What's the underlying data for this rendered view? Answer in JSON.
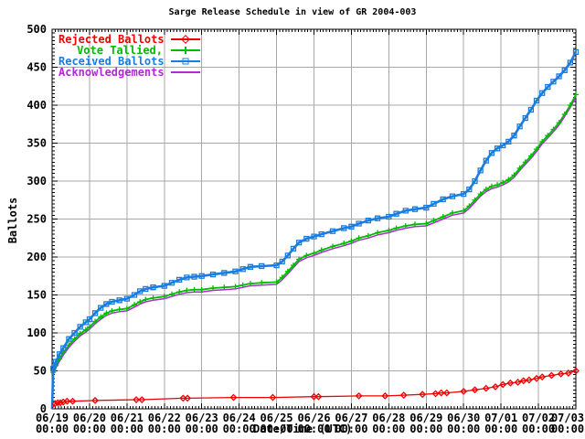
{
  "chart_data": {
    "type": "line",
    "title": "Sarge Release Schedule in view of GR 2004-003",
    "xlabel": "Date/Time (UTC)",
    "ylabel": "Ballots",
    "ylim": [
      0,
      500
    ],
    "y_tick_step": 50,
    "y_minor_step": 5,
    "x_range_days": [
      0,
      14
    ],
    "x_minor_per_day": 12,
    "grid": true,
    "grid_color": "#a8a8a8",
    "border_color": "#000000",
    "legend_position": "top-left-inside",
    "x_ticks": [
      {
        "date": "06/19",
        "time": "00:00"
      },
      {
        "date": "06/20",
        "time": "00:00"
      },
      {
        "date": "06/21",
        "time": "00:00"
      },
      {
        "date": "06/22",
        "time": "00:00"
      },
      {
        "date": "06/23",
        "time": "00:00"
      },
      {
        "date": "06/24",
        "time": "00:00"
      },
      {
        "date": "06/25",
        "time": "00:00"
      },
      {
        "date": "06/26",
        "time": "00:00"
      },
      {
        "date": "06/27",
        "time": "00:00"
      },
      {
        "date": "06/28",
        "time": "00:00"
      },
      {
        "date": "06/29",
        "time": "00:00"
      },
      {
        "date": "06/30",
        "time": "00:00"
      },
      {
        "date": "07/01",
        "time": "00:00"
      },
      {
        "date": "07/02",
        "time": "00:00"
      },
      {
        "date": "07/03",
        "time": "00:00"
      }
    ],
    "series": [
      {
        "name": "Rejected Ballots",
        "color": "#f00000",
        "marker": "diamond",
        "points": [
          [
            0,
            0
          ],
          [
            0.08,
            7
          ],
          [
            0.15,
            8
          ],
          [
            0.22,
            8
          ],
          [
            0.3,
            9
          ],
          [
            0.4,
            10
          ],
          [
            0.55,
            10
          ],
          [
            1.15,
            11
          ],
          [
            2.25,
            12
          ],
          [
            2.4,
            12
          ],
          [
            3.5,
            14
          ],
          [
            3.62,
            14
          ],
          [
            4.85,
            15
          ],
          [
            5.9,
            15
          ],
          [
            7.0,
            16
          ],
          [
            7.12,
            16
          ],
          [
            8.2,
            17
          ],
          [
            8.9,
            17
          ],
          [
            9.4,
            18
          ],
          [
            9.9,
            19
          ],
          [
            10.25,
            20
          ],
          [
            10.4,
            21
          ],
          [
            10.55,
            21
          ],
          [
            11.0,
            23
          ],
          [
            11.3,
            25
          ],
          [
            11.6,
            27
          ],
          [
            11.85,
            29
          ],
          [
            12.05,
            32
          ],
          [
            12.25,
            34
          ],
          [
            12.45,
            35
          ],
          [
            12.6,
            37
          ],
          [
            12.75,
            38
          ],
          [
            12.95,
            40
          ],
          [
            13.1,
            42
          ],
          [
            13.35,
            44
          ],
          [
            13.6,
            46
          ],
          [
            13.8,
            47
          ],
          [
            14.0,
            50
          ]
        ]
      },
      {
        "name": "Vote Tallied,",
        "color": "#00bc00",
        "marker": "plus",
        "points": [
          [
            0,
            0
          ],
          [
            0.03,
            48
          ],
          [
            0.1,
            57
          ],
          [
            0.2,
            66
          ],
          [
            0.3,
            74
          ],
          [
            0.45,
            84
          ],
          [
            0.6,
            92
          ],
          [
            0.75,
            99
          ],
          [
            0.9,
            104
          ],
          [
            1.0,
            108
          ],
          [
            1.15,
            115
          ],
          [
            1.3,
            121
          ],
          [
            1.45,
            126
          ],
          [
            1.6,
            129
          ],
          [
            1.8,
            131
          ],
          [
            2.0,
            132
          ],
          [
            2.2,
            137
          ],
          [
            2.35,
            141
          ],
          [
            2.5,
            144
          ],
          [
            2.7,
            146
          ],
          [
            3.0,
            148
          ],
          [
            3.2,
            151
          ],
          [
            3.4,
            154
          ],
          [
            3.6,
            156
          ],
          [
            3.8,
            157
          ],
          [
            4.0,
            157
          ],
          [
            4.3,
            159
          ],
          [
            4.6,
            160
          ],
          [
            4.9,
            161
          ],
          [
            5.1,
            163
          ],
          [
            5.3,
            165
          ],
          [
            5.6,
            166
          ],
          [
            6.0,
            167
          ],
          [
            6.15,
            173
          ],
          [
            6.3,
            181
          ],
          [
            6.45,
            189
          ],
          [
            6.6,
            197
          ],
          [
            6.8,
            202
          ],
          [
            7.0,
            205
          ],
          [
            7.2,
            209
          ],
          [
            7.5,
            214
          ],
          [
            7.8,
            218
          ],
          [
            8.0,
            221
          ],
          [
            8.2,
            225
          ],
          [
            8.45,
            228
          ],
          [
            8.7,
            232
          ],
          [
            9.0,
            235
          ],
          [
            9.2,
            238
          ],
          [
            9.45,
            241
          ],
          [
            9.7,
            243
          ],
          [
            10.0,
            244
          ],
          [
            10.2,
            248
          ],
          [
            10.45,
            253
          ],
          [
            10.7,
            258
          ],
          [
            11.0,
            261
          ],
          [
            11.15,
            267
          ],
          [
            11.3,
            275
          ],
          [
            11.45,
            283
          ],
          [
            11.6,
            289
          ],
          [
            11.75,
            293
          ],
          [
            11.9,
            295
          ],
          [
            12.05,
            298
          ],
          [
            12.2,
            302
          ],
          [
            12.35,
            308
          ],
          [
            12.5,
            317
          ],
          [
            12.65,
            325
          ],
          [
            12.8,
            333
          ],
          [
            12.95,
            342
          ],
          [
            13.1,
            352
          ],
          [
            13.25,
            360
          ],
          [
            13.4,
            368
          ],
          [
            13.55,
            377
          ],
          [
            13.7,
            388
          ],
          [
            13.85,
            400
          ],
          [
            14.0,
            414
          ]
        ]
      },
      {
        "name": "Received Ballots",
        "color": "#1b7ce0",
        "marker": "square",
        "points": [
          [
            0,
            0
          ],
          [
            0.03,
            53
          ],
          [
            0.1,
            62
          ],
          [
            0.2,
            72
          ],
          [
            0.3,
            80
          ],
          [
            0.45,
            92
          ],
          [
            0.6,
            100
          ],
          [
            0.75,
            108
          ],
          [
            0.9,
            114
          ],
          [
            1.0,
            118
          ],
          [
            1.15,
            126
          ],
          [
            1.3,
            133
          ],
          [
            1.45,
            138
          ],
          [
            1.6,
            141
          ],
          [
            1.8,
            143
          ],
          [
            2.0,
            145
          ],
          [
            2.2,
            150
          ],
          [
            2.35,
            155
          ],
          [
            2.5,
            158
          ],
          [
            2.7,
            160
          ],
          [
            3.0,
            162
          ],
          [
            3.2,
            166
          ],
          [
            3.4,
            170
          ],
          [
            3.6,
            173
          ],
          [
            3.8,
            174
          ],
          [
            4.0,
            175
          ],
          [
            4.3,
            177
          ],
          [
            4.6,
            179
          ],
          [
            4.9,
            181
          ],
          [
            5.1,
            184
          ],
          [
            5.3,
            187
          ],
          [
            5.6,
            188
          ],
          [
            6.0,
            189
          ],
          [
            6.15,
            194
          ],
          [
            6.3,
            202
          ],
          [
            6.45,
            211
          ],
          [
            6.6,
            219
          ],
          [
            6.8,
            224
          ],
          [
            7.0,
            227
          ],
          [
            7.2,
            230
          ],
          [
            7.5,
            234
          ],
          [
            7.8,
            238
          ],
          [
            8.0,
            240
          ],
          [
            8.2,
            244
          ],
          [
            8.45,
            248
          ],
          [
            8.7,
            251
          ],
          [
            9.0,
            253
          ],
          [
            9.2,
            257
          ],
          [
            9.45,
            261
          ],
          [
            9.7,
            263
          ],
          [
            10.0,
            265
          ],
          [
            10.2,
            270
          ],
          [
            10.45,
            276
          ],
          [
            10.7,
            280
          ],
          [
            11.0,
            283
          ],
          [
            11.15,
            289
          ],
          [
            11.3,
            300
          ],
          [
            11.45,
            314
          ],
          [
            11.6,
            327
          ],
          [
            11.75,
            337
          ],
          [
            11.9,
            343
          ],
          [
            12.05,
            347
          ],
          [
            12.2,
            352
          ],
          [
            12.35,
            360
          ],
          [
            12.5,
            372
          ],
          [
            12.65,
            383
          ],
          [
            12.8,
            394
          ],
          [
            12.95,
            406
          ],
          [
            13.1,
            416
          ],
          [
            13.25,
            424
          ],
          [
            13.4,
            431
          ],
          [
            13.55,
            438
          ],
          [
            13.7,
            446
          ],
          [
            13.85,
            456
          ],
          [
            14.0,
            470
          ]
        ]
      },
      {
        "name": "Acknowledgements",
        "color": "#b028d8",
        "marker": "none",
        "points": [
          [
            0,
            0
          ],
          [
            0.03,
            45
          ],
          [
            0.1,
            54
          ],
          [
            0.2,
            63
          ],
          [
            0.3,
            71
          ],
          [
            0.45,
            81
          ],
          [
            0.6,
            89
          ],
          [
            0.75,
            96
          ],
          [
            0.9,
            101
          ],
          [
            1.0,
            105
          ],
          [
            1.15,
            112
          ],
          [
            1.3,
            118
          ],
          [
            1.45,
            123
          ],
          [
            1.6,
            126
          ],
          [
            1.8,
            128
          ],
          [
            2.0,
            129
          ],
          [
            2.2,
            134
          ],
          [
            2.35,
            138
          ],
          [
            2.5,
            141
          ],
          [
            2.7,
            143
          ],
          [
            3.0,
            145
          ],
          [
            3.2,
            148
          ],
          [
            3.4,
            151
          ],
          [
            3.6,
            153
          ],
          [
            3.8,
            154
          ],
          [
            4.0,
            154
          ],
          [
            4.3,
            156
          ],
          [
            4.6,
            157
          ],
          [
            4.9,
            158
          ],
          [
            5.1,
            160
          ],
          [
            5.3,
            162
          ],
          [
            5.6,
            163
          ],
          [
            6.0,
            164
          ],
          [
            6.15,
            170
          ],
          [
            6.3,
            178
          ],
          [
            6.45,
            186
          ],
          [
            6.6,
            194
          ],
          [
            6.8,
            199
          ],
          [
            7.0,
            202
          ],
          [
            7.2,
            206
          ],
          [
            7.5,
            211
          ],
          [
            7.8,
            215
          ],
          [
            8.0,
            218
          ],
          [
            8.2,
            222
          ],
          [
            8.45,
            225
          ],
          [
            8.7,
            229
          ],
          [
            9.0,
            232
          ],
          [
            9.2,
            235
          ],
          [
            9.45,
            238
          ],
          [
            9.7,
            240
          ],
          [
            10.0,
            241
          ],
          [
            10.2,
            245
          ],
          [
            10.45,
            250
          ],
          [
            10.7,
            255
          ],
          [
            11.0,
            258
          ],
          [
            11.15,
            264
          ],
          [
            11.3,
            272
          ],
          [
            11.45,
            280
          ],
          [
            11.6,
            286
          ],
          [
            11.75,
            290
          ],
          [
            11.9,
            292
          ],
          [
            12.05,
            295
          ],
          [
            12.2,
            299
          ],
          [
            12.35,
            305
          ],
          [
            12.5,
            314
          ],
          [
            12.65,
            322
          ],
          [
            12.8,
            330
          ],
          [
            12.95,
            339
          ],
          [
            13.1,
            349
          ],
          [
            13.25,
            357
          ],
          [
            13.4,
            365
          ],
          [
            13.55,
            374
          ],
          [
            13.7,
            385
          ],
          [
            13.85,
            397
          ],
          [
            14.0,
            411
          ]
        ]
      }
    ]
  }
}
